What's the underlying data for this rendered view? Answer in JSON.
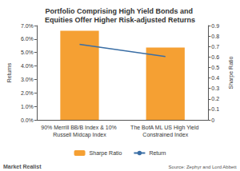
{
  "chart_data": {
    "type": "bar",
    "title": "Portfolio Comprising High Yield Bonds and Equities Offer Higher Risk-adjusted Returns",
    "categories": [
      "90% Merrill BB/B Index & 10% Russell Midcap Index",
      "The BofA ML US High Yield Constrained Index"
    ],
    "series": [
      {
        "name": "Sharpe Ratio",
        "type": "bar",
        "color": "#f5a033",
        "axis": "y2",
        "values": [
          0.85,
          0.69
        ]
      },
      {
        "name": "Return",
        "type": "line",
        "color": "#3a6ea5",
        "marker": "none",
        "values": [
          5.6,
          4.7
        ]
      }
    ],
    "y_label": "Returns",
    "y2_label": "Sharpe Ratio",
    "ylim": [
      0,
      7
    ],
    "yticks": [
      {
        "value": 0,
        "label": "0.0%"
      },
      {
        "value": 1,
        "label": "1.0%"
      },
      {
        "value": 2,
        "label": "2.0%"
      },
      {
        "value": 3,
        "label": "3.0%"
      },
      {
        "value": 4,
        "label": "4.0%"
      },
      {
        "value": 5,
        "label": "5.0%"
      },
      {
        "value": 6,
        "label": "6.0%"
      },
      {
        "value": 7,
        "label": "7.0%"
      }
    ],
    "y2lim": [
      0,
      0.9
    ],
    "y2ticks": [
      0,
      0.1,
      0.2,
      0.3,
      0.4,
      0.5,
      0.6,
      0.7,
      0.8,
      0.9
    ],
    "grid": false,
    "legend": "bottom",
    "annotations": [
      "Market Realist",
      "Source: Zephyr and Lord Abbett"
    ]
  }
}
